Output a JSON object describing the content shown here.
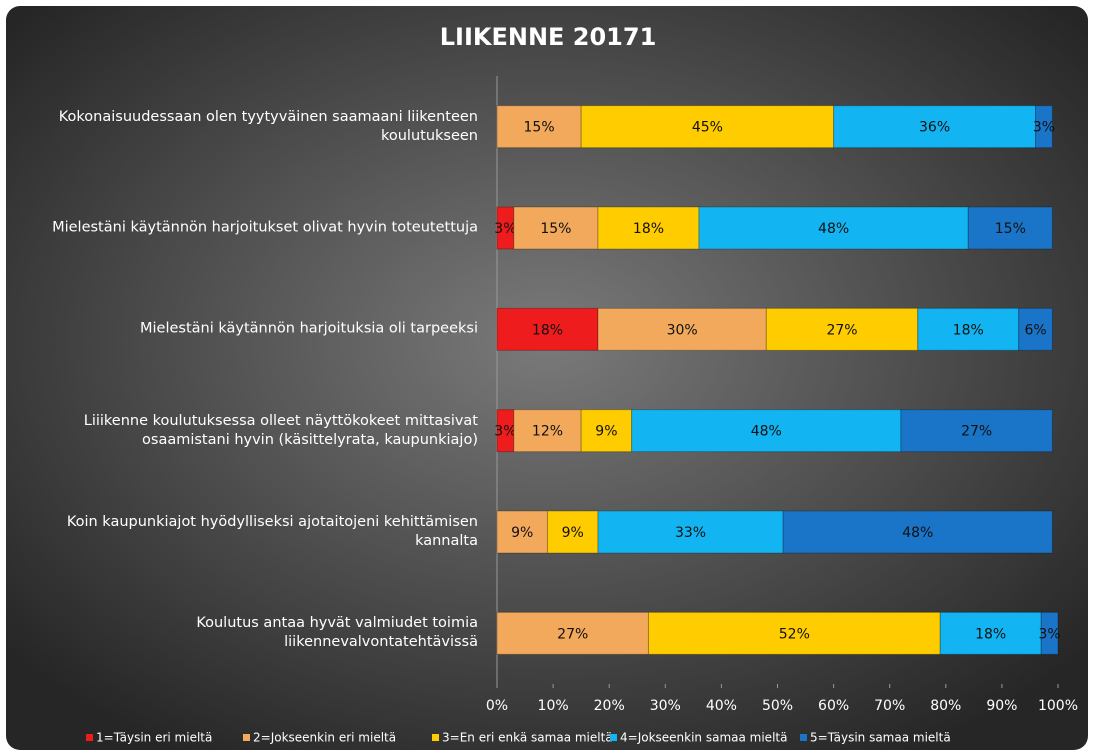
{
  "chart_data": {
    "type": "stacked_barh",
    "title": "LIIKENNE 20171",
    "categories": [
      "Kokonaisuudessaan olen tyytyväinen saamaani liikenteen koulutukseen",
      "Mielestäni käytännön harjoitukset olivat hyvin toteutettuja",
      "Mielestäni käytännön harjoituksia oli tarpeeksi",
      "Liiikenne koulutuksessa olleet näyttökokeet mittasivat osaamistani hyvin (käsittelyrata, kaupunkiajo)",
      "Koin kaupunkiajot hyödylliseksi ajotaitojeni kehittämisen kannalta",
      "Koulutus antaa hyvät valmiudet toimia liikennevalvontatehtävissä"
    ],
    "series": [
      {
        "name": "1=Täysin eri mieltä",
        "color": "#ee1c1c",
        "values": [
          null,
          3,
          18,
          3,
          null,
          null
        ],
        "value_labels": [
          null,
          "3%",
          "18%",
          "3%",
          null,
          null
        ]
      },
      {
        "name": "2=Jokseenkin eri mieltä",
        "color": "#f2a95c",
        "values": [
          15,
          15,
          30,
          12,
          9,
          27
        ],
        "value_labels": [
          "15%",
          "15%",
          "30%",
          "12%",
          "9%",
          "27%"
        ]
      },
      {
        "name": "3=En eri enkä samaa mieltä",
        "color": "#ffcc00",
        "values": [
          45,
          18,
          27,
          9,
          9,
          52
        ],
        "value_labels": [
          "45%",
          "18%",
          "27%",
          "9%",
          "9%",
          "52%"
        ]
      },
      {
        "name": "4=Jokseenkin samaa mieltä",
        "color": "#12b4f2",
        "values": [
          36,
          48,
          18,
          48,
          33,
          18
        ],
        "value_labels": [
          "36%",
          "48%",
          "18%",
          "48%",
          "33%",
          "18%"
        ]
      },
      {
        "name": "5=Täysin samaa mieltä",
        "color": "#1a74c8",
        "values": [
          3,
          15,
          6,
          27,
          48,
          3
        ],
        "value_labels": [
          "3%",
          "15%",
          "6%",
          "27%",
          "48%",
          "3%"
        ]
      }
    ],
    "xlim": [
      0,
      100
    ],
    "xticks": [
      {
        "value": 0,
        "label": "0%"
      },
      {
        "value": 10,
        "label": "10%"
      },
      {
        "value": 20,
        "label": "20%"
      },
      {
        "value": 30,
        "label": "30%"
      },
      {
        "value": 40,
        "label": "40%"
      },
      {
        "value": 50,
        "label": "50%"
      },
      {
        "value": 60,
        "label": "60%"
      },
      {
        "value": 70,
        "label": "70%"
      },
      {
        "value": 80,
        "label": "80%"
      },
      {
        "value": 90,
        "label": "90%"
      },
      {
        "value": 100,
        "label": "100%"
      }
    ],
    "legend": "bottom"
  }
}
